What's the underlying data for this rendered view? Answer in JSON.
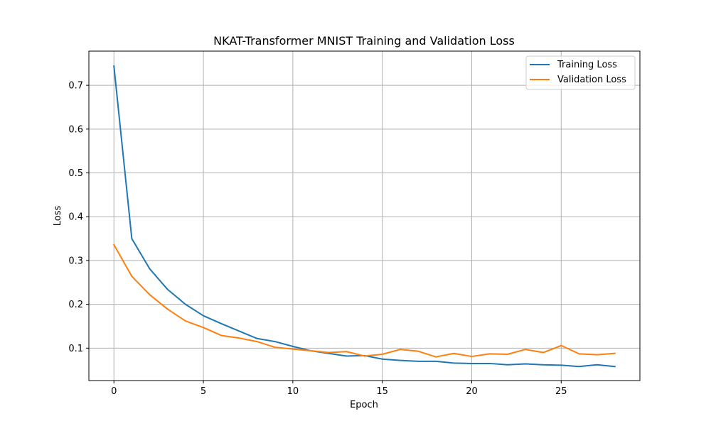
{
  "chart_data": {
    "type": "line",
    "title": "NKAT-Transformer MNIST Training and Validation Loss",
    "xlabel": "Epoch",
    "ylabel": "Loss",
    "xlim": [
      -1.4,
      29.4
    ],
    "ylim": [
      0.026,
      0.778
    ],
    "xticks": [
      0,
      5,
      10,
      15,
      20,
      25
    ],
    "yticks": [
      0.1,
      0.2,
      0.3,
      0.4,
      0.5,
      0.6,
      0.7
    ],
    "grid": true,
    "legend_position": "top-right",
    "x": [
      0,
      1,
      2,
      3,
      4,
      5,
      6,
      7,
      8,
      9,
      10,
      11,
      12,
      13,
      14,
      15,
      16,
      17,
      18,
      19,
      20,
      21,
      22,
      23,
      24,
      25,
      26,
      27,
      28
    ],
    "series": [
      {
        "name": "Training Loss",
        "color": "#1f77b4",
        "values": [
          0.744,
          0.35,
          0.281,
          0.234,
          0.2,
          0.174,
          0.156,
          0.139,
          0.122,
          0.115,
          0.104,
          0.094,
          0.088,
          0.082,
          0.083,
          0.075,
          0.072,
          0.07,
          0.07,
          0.066,
          0.065,
          0.065,
          0.062,
          0.064,
          0.062,
          0.061,
          0.058,
          0.062,
          0.058
        ]
      },
      {
        "name": "Validation Loss",
        "color": "#ff7f0e",
        "values": [
          0.336,
          0.264,
          0.222,
          0.189,
          0.162,
          0.147,
          0.129,
          0.123,
          0.115,
          0.102,
          0.098,
          0.094,
          0.09,
          0.092,
          0.082,
          0.086,
          0.097,
          0.093,
          0.08,
          0.088,
          0.081,
          0.087,
          0.086,
          0.097,
          0.09,
          0.106,
          0.087,
          0.085,
          0.088
        ]
      }
    ]
  }
}
